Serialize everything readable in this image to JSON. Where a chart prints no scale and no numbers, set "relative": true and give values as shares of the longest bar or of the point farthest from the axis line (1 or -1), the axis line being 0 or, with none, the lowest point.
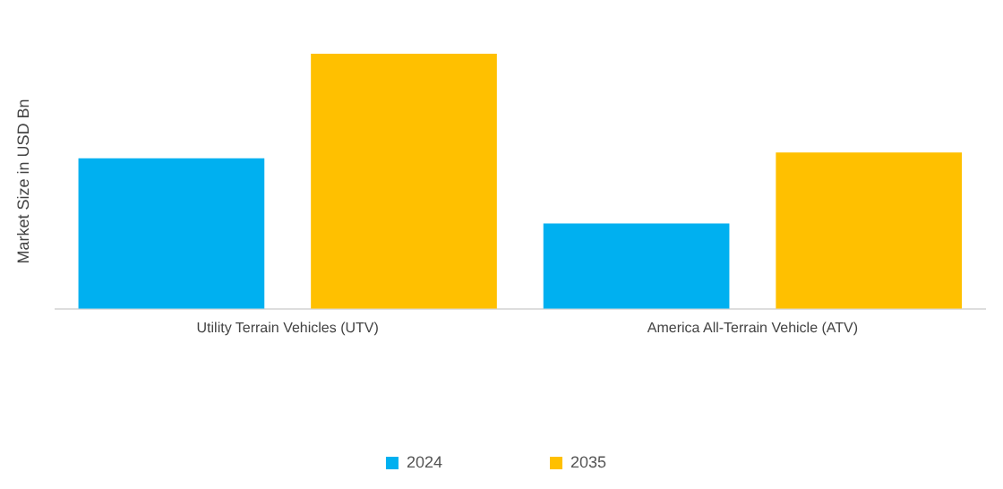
{
  "chart_data": {
    "type": "bar",
    "ylabel": "Market Size in USD Bn",
    "relative": true,
    "categories": [
      "Utility Terrain Vehicles (UTV)",
      "America All-Terrain Vehicle (ATV)"
    ],
    "series": [
      {
        "name": "2024",
        "color": "#00b0f0",
        "values": [
          0.59,
          0.335
        ]
      },
      {
        "name": "2035",
        "color": "#ffc000",
        "values": [
          1,
          0.613
        ]
      }
    ],
    "legend": "bottom",
    "grid": false
  }
}
